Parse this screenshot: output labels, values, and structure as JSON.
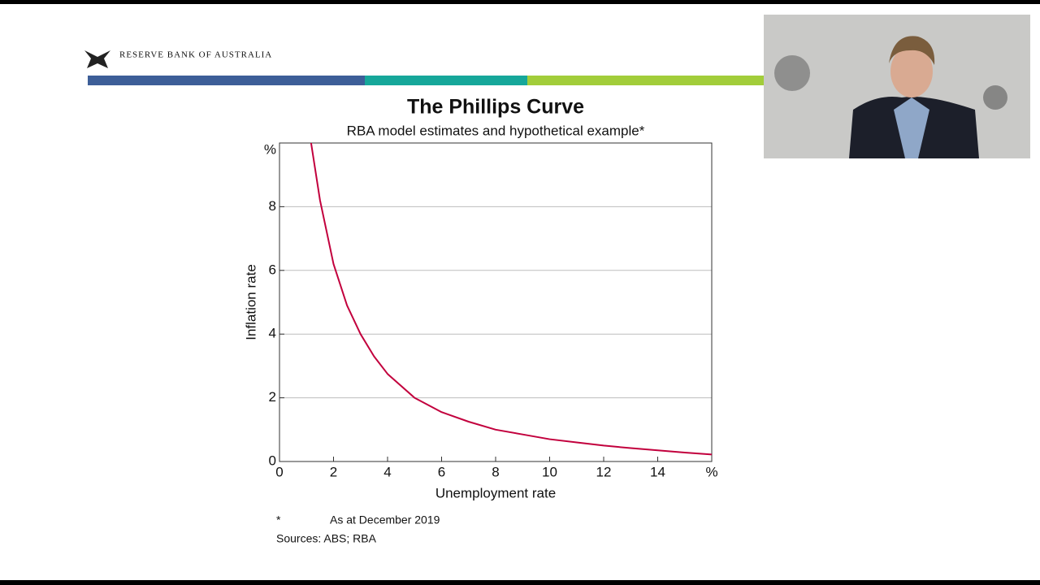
{
  "header": {
    "organization": "RESERVE BANK OF AUSTRALIA"
  },
  "chart_data": {
    "type": "line",
    "title": "The Phillips Curve",
    "subtitle": "RBA model estimates and hypothetical example*",
    "x_label": "Unemployment rate",
    "y_label": "Inflation rate",
    "x": [
      1.17,
      1.5,
      2,
      2.5,
      3,
      3.5,
      4,
      5,
      6,
      7,
      8,
      9,
      10,
      11,
      12,
      13,
      14,
      15,
      16
    ],
    "values": [
      10,
      8.2,
      6.2,
      4.9,
      4.0,
      3.3,
      2.75,
      2.0,
      1.55,
      1.25,
      1.0,
      0.85,
      0.7,
      0.6,
      0.5,
      0.42,
      0.35,
      0.28,
      0.22
    ],
    "color": "#c2003d",
    "xlim": [
      0,
      16
    ],
    "ylim": [
      0,
      10
    ],
    "xticks": [
      0,
      2,
      4,
      6,
      8,
      10,
      12,
      14,
      {
        "value": 16,
        "label": "%"
      }
    ],
    "yticks": [
      0,
      2,
      4,
      6,
      8,
      {
        "value": 10,
        "label": "%"
      }
    ],
    "grid": true
  },
  "notes": {
    "marker": "*",
    "footnote": "As at December 2019",
    "sources": "Sources: ABS; RBA"
  }
}
